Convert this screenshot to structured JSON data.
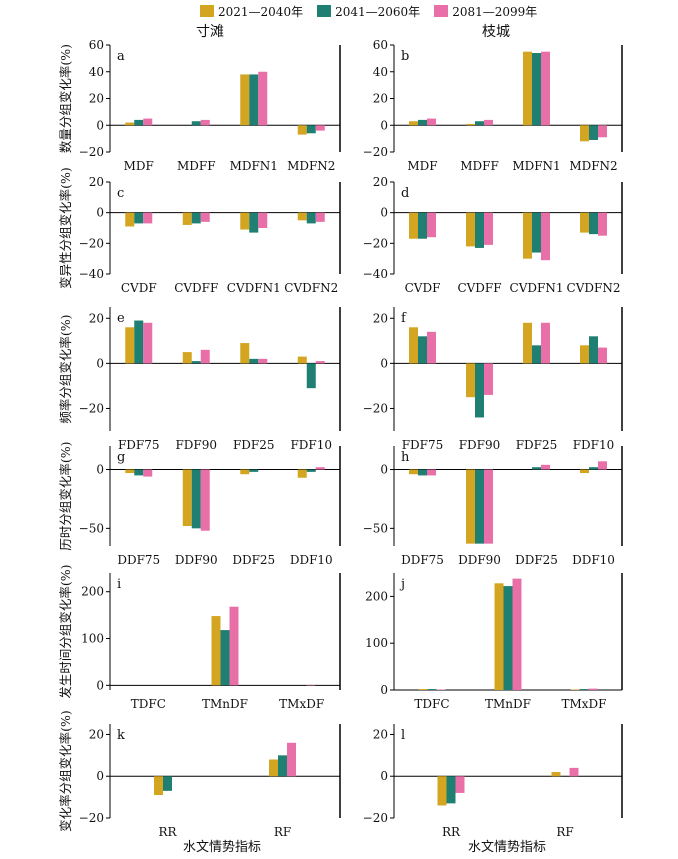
{
  "legend": [
    {
      "label": "2021—2040年",
      "color": "#d4a520"
    },
    {
      "label": "2041—2060年",
      "color": "#1e7f72"
    },
    {
      "label": "2081—2099年",
      "color": "#e86fa8"
    }
  ],
  "column_titles": [
    "寸滩",
    "枝城"
  ],
  "x_axis_title": "水文情势指标",
  "chart_data": [
    {
      "type": "bar",
      "panel": "a",
      "station": "寸滩",
      "ylabel": "数量分组变化率(%)",
      "ylim": [
        -20,
        60
      ],
      "yticks": [
        -20,
        0,
        20,
        40,
        60
      ],
      "categories": [
        "MDF",
        "MDFF",
        "MDFN1",
        "MDFN2"
      ],
      "series": [
        {
          "name": "2021—2040年",
          "values": [
            2,
            0,
            38,
            -7
          ]
        },
        {
          "name": "2041—2060年",
          "values": [
            4,
            3,
            38,
            -6
          ]
        },
        {
          "name": "2081—2099年",
          "values": [
            5,
            4,
            40,
            -4
          ]
        }
      ]
    },
    {
      "type": "bar",
      "panel": "b",
      "station": "枝城",
      "ylabel": "",
      "ylim": [
        -20,
        60
      ],
      "yticks": [
        -20,
        0,
        20,
        40,
        60
      ],
      "categories": [
        "MDF",
        "MDFF",
        "MDFN1",
        "MDFN2"
      ],
      "series": [
        {
          "name": "2021—2040年",
          "values": [
            3,
            1,
            55,
            -12
          ]
        },
        {
          "name": "2041—2060年",
          "values": [
            4,
            3,
            54,
            -11
          ]
        },
        {
          "name": "2081—2099年",
          "values": [
            5,
            4,
            55,
            -9
          ]
        }
      ]
    },
    {
      "type": "bar",
      "panel": "c",
      "station": "寸滩",
      "ylabel": "变异性分组变化率(%)",
      "ylim": [
        -40,
        20
      ],
      "yticks": [
        -40,
        -20,
        0,
        20
      ],
      "categories": [
        "CVDF",
        "CVDFF",
        "CVDFN1",
        "CVDFN2"
      ],
      "series": [
        {
          "name": "2021—2040年",
          "values": [
            -9,
            -8,
            -11,
            -5
          ]
        },
        {
          "name": "2041—2060年",
          "values": [
            -7,
            -7,
            -13,
            -7
          ]
        },
        {
          "name": "2081—2099年",
          "values": [
            -7,
            -6,
            -10,
            -6
          ]
        }
      ]
    },
    {
      "type": "bar",
      "panel": "d",
      "station": "枝城",
      "ylabel": "",
      "ylim": [
        -40,
        20
      ],
      "yticks": [
        -40,
        -20,
        0,
        20
      ],
      "categories": [
        "CVDF",
        "CVDFF",
        "CVDFN1",
        "CVDFN2"
      ],
      "series": [
        {
          "name": "2021—2040年",
          "values": [
            -17,
            -22,
            -30,
            -13
          ]
        },
        {
          "name": "2041—2060年",
          "values": [
            -17,
            -23,
            -26,
            -14
          ]
        },
        {
          "name": "2081—2099年",
          "values": [
            -16,
            -21,
            -31,
            -15
          ]
        }
      ]
    },
    {
      "type": "bar",
      "panel": "e",
      "station": "寸滩",
      "ylabel": "频率分组变化率(%)",
      "ylim": [
        -30,
        25
      ],
      "yticks": [
        -20,
        0,
        20
      ],
      "categories": [
        "FDF75",
        "FDF90",
        "FDF25",
        "FDF10"
      ],
      "series": [
        {
          "name": "2021—2040年",
          "values": [
            16,
            5,
            9,
            3
          ]
        },
        {
          "name": "2041—2060年",
          "values": [
            19,
            1,
            2,
            -11
          ]
        },
        {
          "name": "2081—2099年",
          "values": [
            18,
            6,
            2,
            1
          ]
        }
      ]
    },
    {
      "type": "bar",
      "panel": "f",
      "station": "枝城",
      "ylabel": "",
      "ylim": [
        -30,
        25
      ],
      "yticks": [
        -20,
        0,
        20
      ],
      "categories": [
        "FDF75",
        "FDF90",
        "FDF25",
        "FDF10"
      ],
      "series": [
        {
          "name": "2021—2040年",
          "values": [
            16,
            -15,
            18,
            8
          ]
        },
        {
          "name": "2041—2060年",
          "values": [
            12,
            -24,
            8,
            12
          ]
        },
        {
          "name": "2081—2099年",
          "values": [
            14,
            -14,
            18,
            7
          ]
        }
      ]
    },
    {
      "type": "bar",
      "panel": "g",
      "station": "寸滩",
      "ylabel": "历时分组变化率(%)",
      "ylim": [
        -65,
        20
      ],
      "yticks": [
        -50,
        0
      ],
      "categories": [
        "DDF75",
        "DDF90",
        "DDF25",
        "DDF10"
      ],
      "series": [
        {
          "name": "2021—2040年",
          "values": [
            -3,
            -48,
            -4,
            -7
          ]
        },
        {
          "name": "2041—2060年",
          "values": [
            -5,
            -50,
            -2,
            -2
          ]
        },
        {
          "name": "2081—2099年",
          "values": [
            -6,
            -52,
            0,
            2
          ]
        }
      ]
    },
    {
      "type": "bar",
      "panel": "h",
      "station": "枝城",
      "ylabel": "",
      "ylim": [
        -65,
        20
      ],
      "yticks": [
        -50,
        0
      ],
      "categories": [
        "DDF75",
        "DDF90",
        "DDF25",
        "DDF10"
      ],
      "series": [
        {
          "name": "2021—2040年",
          "values": [
            -4,
            -63,
            0,
            -3
          ]
        },
        {
          "name": "2041—2060年",
          "values": [
            -5,
            -63,
            2,
            2
          ]
        },
        {
          "name": "2081—2099年",
          "values": [
            -5,
            -63,
            4,
            7
          ]
        }
      ]
    },
    {
      "type": "bar",
      "panel": "i",
      "station": "寸滩",
      "ylabel": "发生时间分组变化率(%)",
      "ylim": [
        -10,
        240
      ],
      "yticks": [
        0,
        100,
        200
      ],
      "categories": [
        "TDFC",
        "TMnDF",
        "TMxDF"
      ],
      "series": [
        {
          "name": "2021—2040年",
          "values": [
            0,
            148,
            0
          ]
        },
        {
          "name": "2041—2060年",
          "values": [
            0,
            118,
            0
          ]
        },
        {
          "name": "2081—2099年",
          "values": [
            0,
            168,
            -1
          ]
        }
      ]
    },
    {
      "type": "bar",
      "panel": "j",
      "station": "枝城",
      "ylabel": "",
      "ylim": [
        0,
        250
      ],
      "yticks": [
        0,
        100,
        200
      ],
      "categories": [
        "TDFC",
        "TMnDF",
        "TMxDF"
      ],
      "series": [
        {
          "name": "2021—2040年",
          "values": [
            2,
            228,
            1
          ]
        },
        {
          "name": "2041—2060年",
          "values": [
            2,
            222,
            2
          ]
        },
        {
          "name": "2081—2099年",
          "values": [
            1,
            238,
            3
          ]
        }
      ]
    },
    {
      "type": "bar",
      "panel": "k",
      "station": "寸滩",
      "ylabel": "变化率分组变化率(%)",
      "ylim": [
        -20,
        25
      ],
      "yticks": [
        -20,
        0,
        20
      ],
      "categories": [
        "RR",
        "RF"
      ],
      "series": [
        {
          "name": "2021—2040年",
          "values": [
            -9,
            8
          ]
        },
        {
          "name": "2041—2060年",
          "values": [
            -7,
            10
          ]
        },
        {
          "name": "2081—2099年",
          "values": [
            0,
            16
          ]
        }
      ]
    },
    {
      "type": "bar",
      "panel": "l",
      "station": "枝城",
      "ylabel": "",
      "ylim": [
        -20,
        25
      ],
      "yticks": [
        -20,
        0,
        20
      ],
      "categories": [
        "RR",
        "RF"
      ],
      "series": [
        {
          "name": "2021—2040年",
          "values": [
            -14,
            2
          ]
        },
        {
          "name": "2041—2060年",
          "values": [
            -13,
            0
          ]
        },
        {
          "name": "2081—2099年",
          "values": [
            -8,
            4
          ]
        }
      ]
    }
  ]
}
